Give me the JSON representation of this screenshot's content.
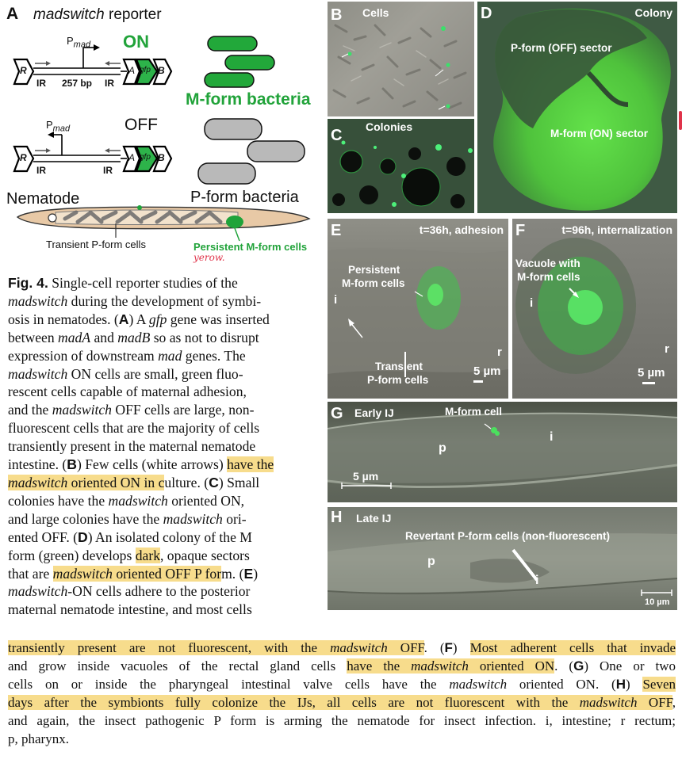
{
  "panelA": {
    "letter": "A",
    "title": "madswitch",
    "title_rest": " reporter",
    "on_label": "ON",
    "off_label": "OFF",
    "pmad": "P",
    "pmad_sub": "mad",
    "ir": "IR",
    "bp": "257 bp",
    "gene_r": "R",
    "gene_a": "A",
    "gene_gfp": "gfp",
    "gene_b": "B",
    "mform": "M-form bacteria",
    "pform": "P-form bacteria",
    "nematode": "Nematode",
    "transient": "Transient P-form cells",
    "persistent": "Persistent M-form cells",
    "handwriting": "yerow."
  },
  "panels": {
    "B": {
      "letter": "B",
      "title": "Cells"
    },
    "C": {
      "letter": "C",
      "title": "Colonies"
    },
    "D": {
      "letter": "D",
      "title": "Colony",
      "poff": "P-form (OFF) sector",
      "mon": "M-form (ON) sector"
    },
    "E": {
      "letter": "E",
      "title": "t=36h, adhesion",
      "persistent1": "Persistent",
      "persistent2": "M-form cells",
      "transient1": "Transient",
      "transient2": "P-form cells",
      "i": "i",
      "r": "r",
      "scale": "5 µm"
    },
    "F": {
      "letter": "F",
      "title": "t=96h, internalization",
      "vac1": "Vacuole with",
      "vac2": "M-form cells",
      "i": "i",
      "r": "r",
      "scale": "5 µm"
    },
    "G": {
      "letter": "G",
      "title": "Early IJ",
      "mcell": "M-form cell",
      "p": "p",
      "i": "i",
      "scale": "5 µm"
    },
    "H": {
      "letter": "H",
      "title": "Late IJ",
      "revertant": "Revertant P-form cells (non-fluorescent)",
      "p": "p",
      "i": "i",
      "scale": "10 µm"
    }
  },
  "caption": {
    "fig": "Fig. 4.",
    "l1": " Single-cell reporter studies of the",
    "l2a": "madswitch",
    "l2b": " during the development of symbi-",
    "l3": "osis in nematodes. (",
    "l3A": "A",
    "l3b": ") A ",
    "l3gfp": "gfp",
    "l3c": " gene was inserted",
    "l4a": "between ",
    "l4madA": "madA",
    "l4b": " and ",
    "l4madB": "madB",
    "l4c": " so as not to disrupt",
    "l5a": "expression of downstream ",
    "l5mad": "mad",
    "l5b": " genes. The",
    "l6a": "madswitch",
    "l6b": " ON cells are small, green fluo-",
    "l7": "rescent cells capable of maternal adhesion,",
    "l8a": "and the ",
    "l8ms": "madswitch",
    "l8b": " OFF cells are large, non-",
    "l9": "fluorescent cells that are the majority of cells",
    "l10": "transiently present in the maternal nematode",
    "l11a": "intestine. (",
    "l11B": "B",
    "l11b": ") Few cells (white arrows) ",
    "l11hl": "have the",
    "l12hl1": "madswitch",
    "l12hl2": " oriented ON in c",
    "l12b": "ulture. (",
    "l12C": "C",
    "l12c": ") Small",
    "l13a": "colonies have the ",
    "l13ms": "madswitch",
    "l13b": " oriented ON,",
    "l14a": "and large colonies have the ",
    "l14ms": "madswitch",
    "l14b": " ori-",
    "l15a": "ented OFF. (",
    "l15D": "D",
    "l15b": ") An isolated colony of the M",
    "l16a": "form (green) develops ",
    "l16hl": "dark",
    "l16b": ", opaque sectors",
    "l17a": "that are ",
    "l17hl1": "madswitch",
    "l17hl2": " oriented OFF P for",
    "l17b": "m. (",
    "l17E": "E",
    "l17c": ")",
    "l18a": "madswitch",
    "l18b": "-ON cells adhere to the posterior",
    "l19": "maternal nematode intestine, and most cells",
    "b1hl1": "transiently present are not fluorescent, with the ",
    "b1hl2": "madswitch",
    "b1hl3": " OFF",
    "b1a": ". (",
    "b1F": "F",
    "b1b": ") ",
    "b1hl4": "Most adherent cells that invade",
    "b2a": "and grow inside vacuoles of the rectal gland cells ",
    "b2hl1": "have the ",
    "b2hl2": "madswitch",
    "b2hl3": " oriented ON",
    "b2b": ". (",
    "b2G": "G",
    "b2c": ") One or two",
    "b3a": "cells on or inside the pharyngeal intestinal valve cells have the ",
    "b3ms": "madswitch",
    "b3b": " oriented ON. (",
    "b3H": "H",
    "b3c": ") ",
    "b3hl": "Seven",
    "b4hl1": "days after the symbionts fully colonize the IJs, all cells are not fluorescent with the ",
    "b4hl2": "madswitch",
    "b4hl3": " OFF",
    "b4b": ",",
    "b5": "and again, the insect pathogenic P form is arming the nematode for insect infection. i, intestine; r rectum;",
    "b6": "p, pharynx."
  }
}
